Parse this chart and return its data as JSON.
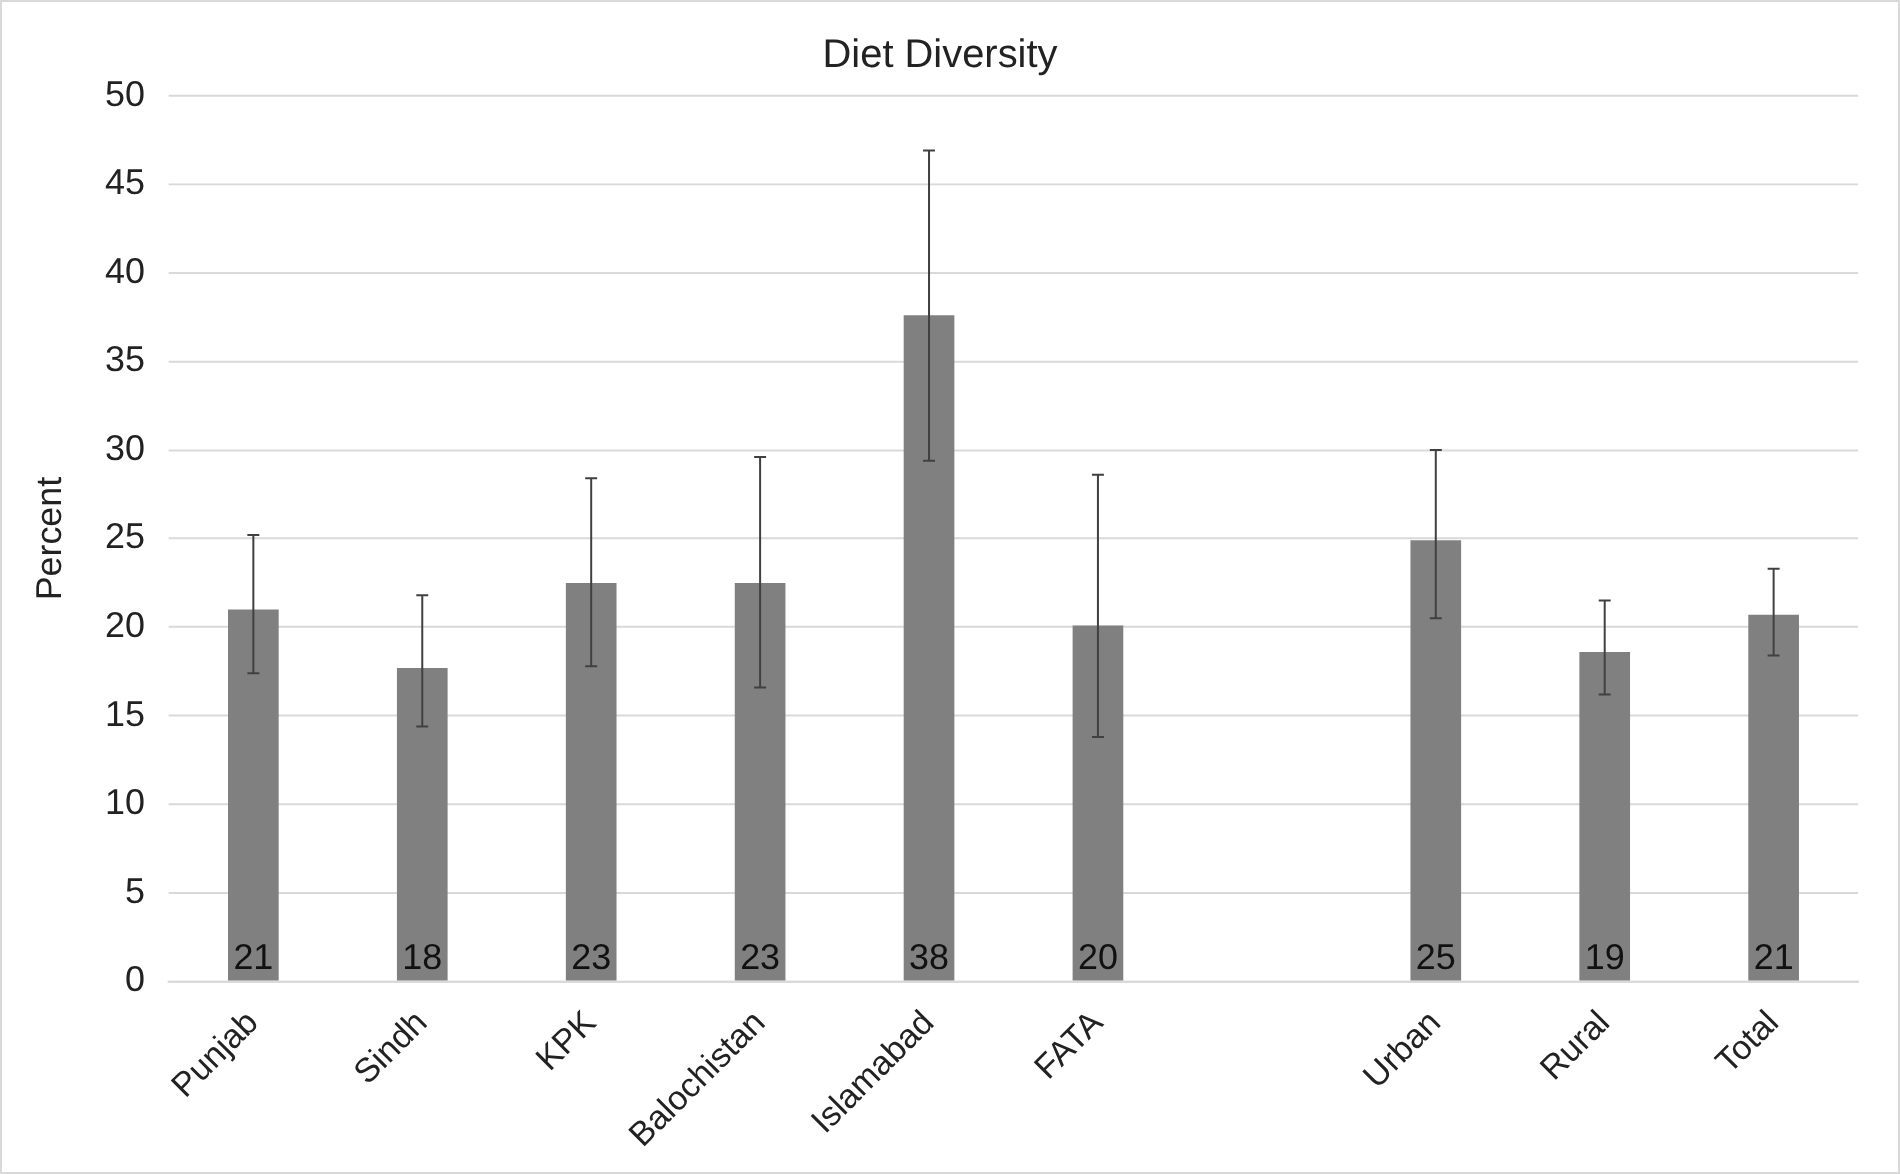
{
  "chart_data": {
    "type": "bar",
    "title": "Diet Diversity",
    "ylabel": "Percent",
    "categories": [
      "Punjab",
      "Sindh",
      "KPK",
      "Balochistan",
      "Islamabad",
      "FATA",
      null,
      "Urban",
      "Rural",
      "Total"
    ],
    "values": [
      21.0,
      17.7,
      22.5,
      22.5,
      37.6,
      20.1,
      null,
      24.9,
      18.6,
      20.7
    ],
    "value_labels": [
      "21",
      "18",
      "23",
      "23",
      "38",
      "20",
      null,
      "25",
      "19",
      "21"
    ],
    "errors": [
      [
        17.4,
        25.2
      ],
      [
        14.4,
        21.8
      ],
      [
        17.8,
        28.4
      ],
      [
        16.6,
        29.6
      ],
      [
        29.4,
        46.9
      ],
      [
        13.8,
        28.6
      ],
      null,
      [
        20.5,
        30.0
      ],
      [
        16.2,
        21.5
      ],
      [
        18.4,
        23.3
      ]
    ],
    "color": "#808080",
    "ylim": [
      0,
      50
    ],
    "yticks": [
      0,
      5,
      10,
      15,
      20,
      25,
      30,
      35,
      40,
      45,
      50
    ],
    "grid": "y",
    "legend": false
  }
}
